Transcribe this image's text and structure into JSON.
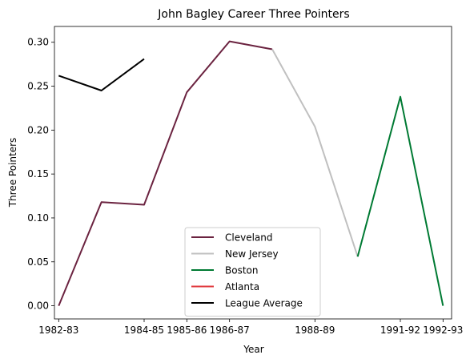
{
  "chart_data": {
    "type": "line",
    "title": "John Bagley  Career Three Pointers",
    "xlabel": "Year",
    "ylabel": "Three Pointers",
    "x_tick_labels": [
      "1982-83",
      "1984-85",
      "1985-86",
      "1986-87",
      "1988-89",
      "1991-92",
      "1992-93"
    ],
    "y_tick_labels": [
      "0.00",
      "0.05",
      "0.10",
      "0.15",
      "0.20",
      "0.25",
      "0.30"
    ],
    "xlim": [
      -0.1,
      9.2
    ],
    "ylim": [
      -0.015,
      0.318
    ],
    "x_ticks": [
      0,
      2,
      3,
      4,
      6,
      8,
      9
    ],
    "y_ticks": [
      0,
      0.05,
      0.1,
      0.15,
      0.2,
      0.25,
      0.3
    ],
    "grid": false,
    "legend_position": "bottom-center",
    "series": [
      {
        "name": "Cleveland",
        "color": "#6b2340",
        "points": [
          [
            0,
            0.0
          ],
          [
            1,
            0.118
          ],
          [
            2,
            0.115
          ],
          [
            3,
            0.243
          ],
          [
            4,
            0.301
          ],
          [
            5,
            0.292
          ]
        ]
      },
      {
        "name": "New Jersey",
        "color": "#c0c0c0",
        "points": [
          [
            5,
            0.292
          ],
          [
            6,
            0.204
          ],
          [
            7,
            0.056
          ]
        ]
      },
      {
        "name": "Boston",
        "color": "#007a33",
        "points": [
          [
            7,
            0.056
          ],
          [
            8,
            0.238
          ],
          [
            9,
            0.0
          ]
        ]
      },
      {
        "name": "Atlanta",
        "color": "#e03a3e",
        "points": []
      },
      {
        "name": "League Average",
        "color": "#000000",
        "points": [
          [
            0,
            0.262
          ],
          [
            1,
            0.245
          ],
          [
            2,
            0.281
          ]
        ]
      }
    ]
  }
}
